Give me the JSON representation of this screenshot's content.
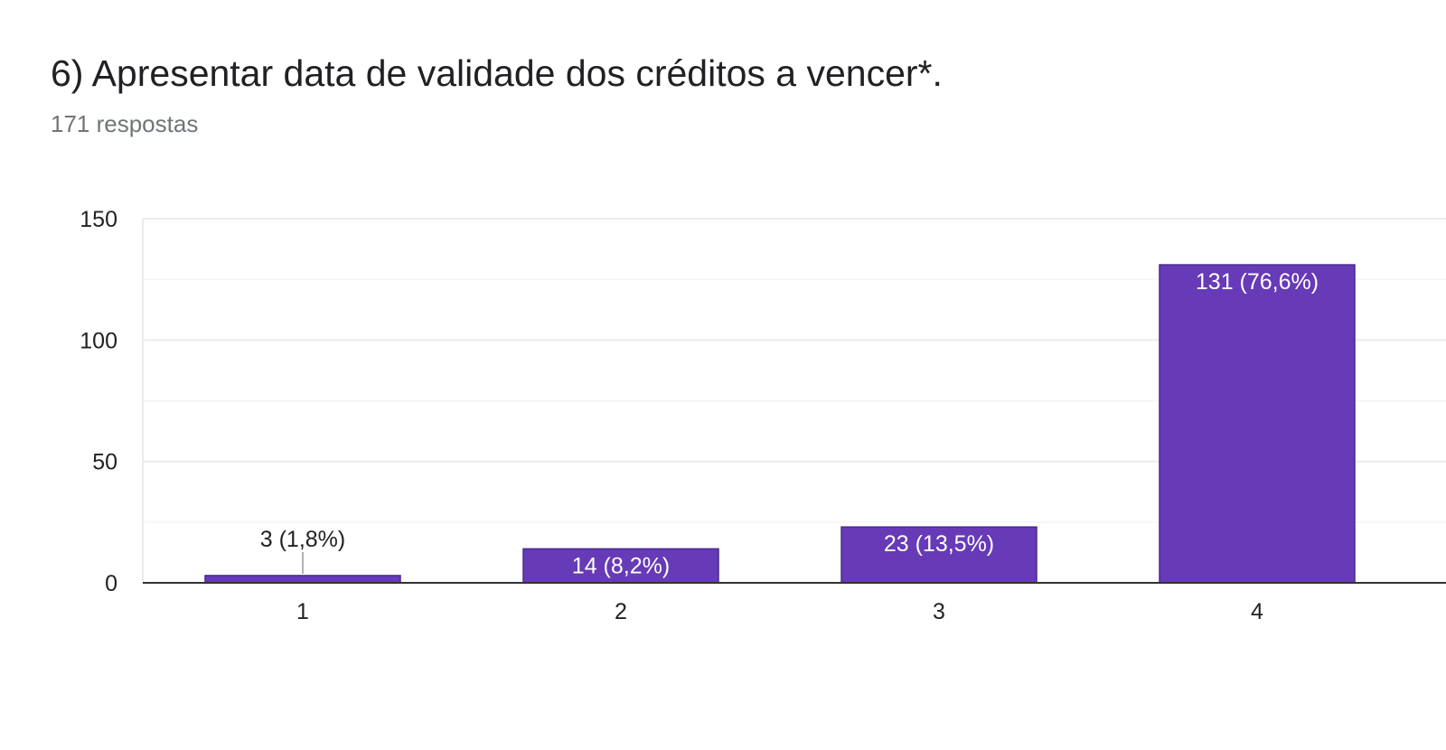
{
  "title": "6) Apresentar data de validade dos créditos a vencer*.",
  "subtitle": "171 respostas",
  "colors": {
    "bar": "#673ab7",
    "bar_stroke": "#4a2a8f",
    "grid": "#ebebeb",
    "grid_minor": "#f5f5f5",
    "axis": "#333333",
    "text": "#222222",
    "label_inside": "#ffffff"
  },
  "chart_data": {
    "type": "bar",
    "categories": [
      "1",
      "2",
      "3",
      "4"
    ],
    "values": [
      3,
      14,
      23,
      131
    ],
    "data_labels": [
      "3 (1,8%)",
      "14 (8,2%)",
      "23 (13,5%)",
      "131 (76,6%)"
    ],
    "yticks": [
      0,
      50,
      100,
      150
    ],
    "ylim": [
      0,
      150
    ],
    "grid": true
  }
}
